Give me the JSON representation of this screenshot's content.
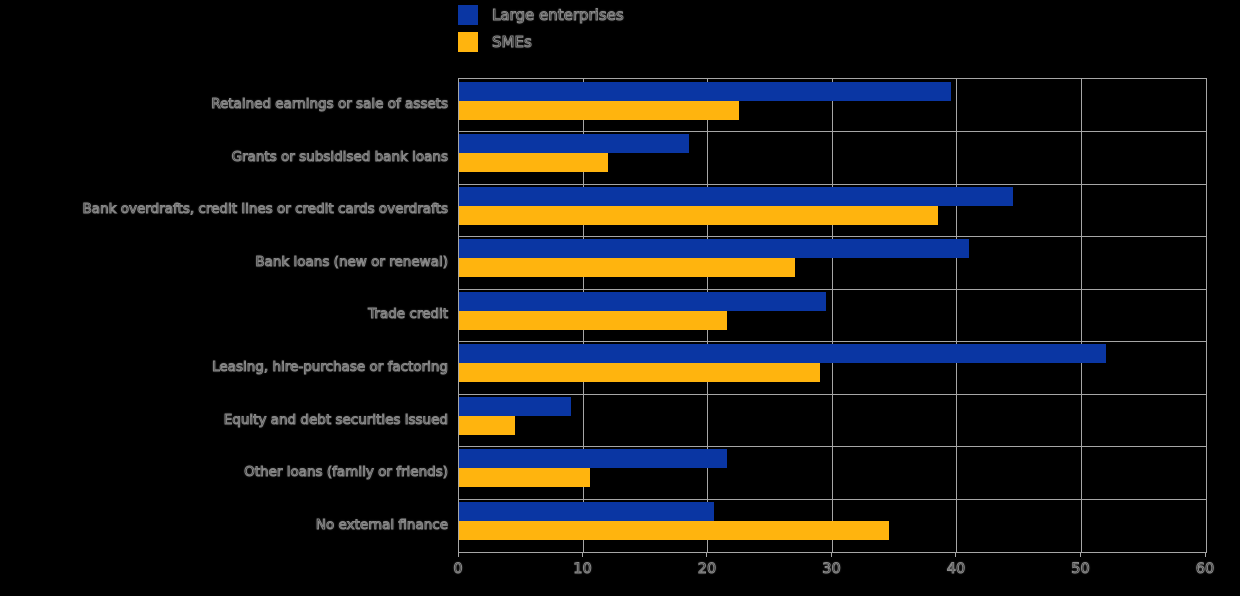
{
  "background_color": "#000000",
  "chart_data": {
    "type": "bar",
    "orientation": "horizontal",
    "title": "",
    "xlabel": "",
    "ylabel": "",
    "categories": [
      "Retained earnings or sale of assets",
      "Grants or subsidised bank loans",
      "Bank overdrafts, credit lines or credit cards overdrafts",
      "Bank loans (new or renewal)",
      "Trade credit",
      "Leasing, hire-purchase or factoring",
      "Equity and debt securities issued",
      "Other loans (family or friends)",
      "No external finance"
    ],
    "series": [
      {
        "name": "Large enterprises",
        "color": "#0a36a3",
        "values": [
          39.5,
          18.5,
          44.5,
          41,
          29.5,
          52,
          9,
          21.5,
          20.5
        ]
      },
      {
        "name": "SMEs",
        "color": "#ffb40e",
        "values": [
          22.5,
          12,
          38.5,
          27,
          21.5,
          29,
          4.5,
          10.5,
          34.5
        ]
      }
    ],
    "xlim": [
      0,
      60
    ],
    "xticks": [
      0,
      10,
      20,
      30,
      40,
      50,
      60
    ],
    "grid": true,
    "gridline_color": "#a6a6a6",
    "legend_position": "top-left"
  }
}
